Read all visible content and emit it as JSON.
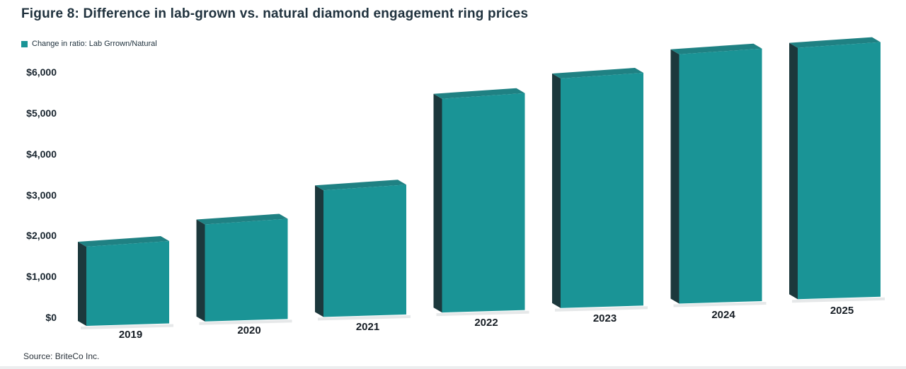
{
  "figure": {
    "title": "Figure 8: Difference in lab-grown vs. natural diamond engagement ring prices",
    "source": "Source: BriteCo Inc."
  },
  "legend": {
    "label": "Change in ratio: Lab Grrown/Natural"
  },
  "colors": {
    "bar_front": "#1a9496",
    "bar_side": "#1c383c",
    "bar_top": "#1f8183",
    "shadow": "#d8dbdd",
    "title_text": "#20323e",
    "axis_text": "#18242e"
  },
  "chart_data": {
    "type": "bar",
    "style": "3d-extruded-columns",
    "title": "Figure 8: Difference in lab-grown vs. natural diamond engagement ring prices",
    "categories": [
      "2019",
      "2020",
      "2021",
      "2022",
      "2023",
      "2024",
      "2025"
    ],
    "series": [
      {
        "name": "Change in ratio: Lab Grrown/Natural",
        "values": [
          2000,
          2450,
          3200,
          5400,
          5800,
          6300,
          6350
        ]
      }
    ],
    "y_ticks": [
      0,
      1000,
      2000,
      3000,
      4000,
      5000,
      6000
    ],
    "y_tick_labels": [
      "$0",
      "$1,000",
      "$2,000",
      "$3,000",
      "$4,000",
      "$5,000",
      "$6,000"
    ],
    "xlabel": "",
    "ylabel": "",
    "ylim": [
      0,
      6700
    ],
    "grid": false,
    "legend_position": "top-left",
    "source": "Source: BriteCo Inc."
  }
}
